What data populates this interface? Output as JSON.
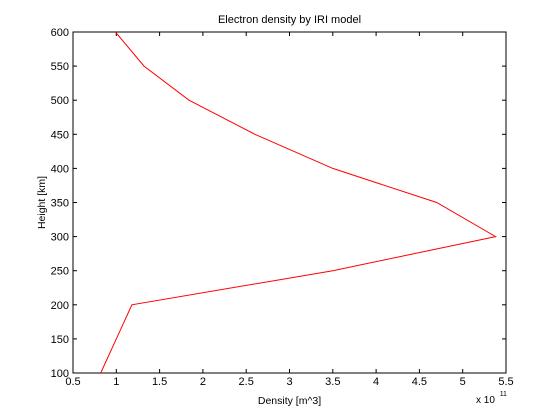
{
  "chart_data": {
    "type": "line",
    "title": "Electron density by IRI model",
    "xlabel": "Density [m^3]",
    "ylabel": "Height [km]",
    "x_multiplier": {
      "base": "x 10",
      "exponent": "11"
    },
    "xlim": [
      0.5,
      5.5
    ],
    "ylim": [
      100,
      600
    ],
    "x_ticks": [
      0.5,
      1,
      1.5,
      2,
      2.5,
      3,
      3.5,
      4,
      4.5,
      5,
      5.5
    ],
    "x_tick_labels": [
      "0.5",
      "1",
      "1.5",
      "2",
      "2.5",
      "3",
      "3.5",
      "4",
      "4.5",
      "5",
      "5.5"
    ],
    "y_ticks": [
      100,
      150,
      200,
      250,
      300,
      350,
      400,
      450,
      500,
      550,
      600
    ],
    "y_tick_labels": [
      "100",
      "150",
      "200",
      "250",
      "300",
      "350",
      "400",
      "450",
      "500",
      "550",
      "600"
    ],
    "grid": false,
    "series": [
      {
        "color": "#ff0000",
        "x": [
          0.82,
          1.0,
          1.18,
          3.5,
          5.38,
          4.7,
          3.5,
          2.6,
          1.84,
          1.32,
          0.99
        ],
        "y": [
          100,
          150,
          200,
          250,
          300,
          350,
          400,
          450,
          500,
          550,
          600
        ]
      }
    ]
  }
}
